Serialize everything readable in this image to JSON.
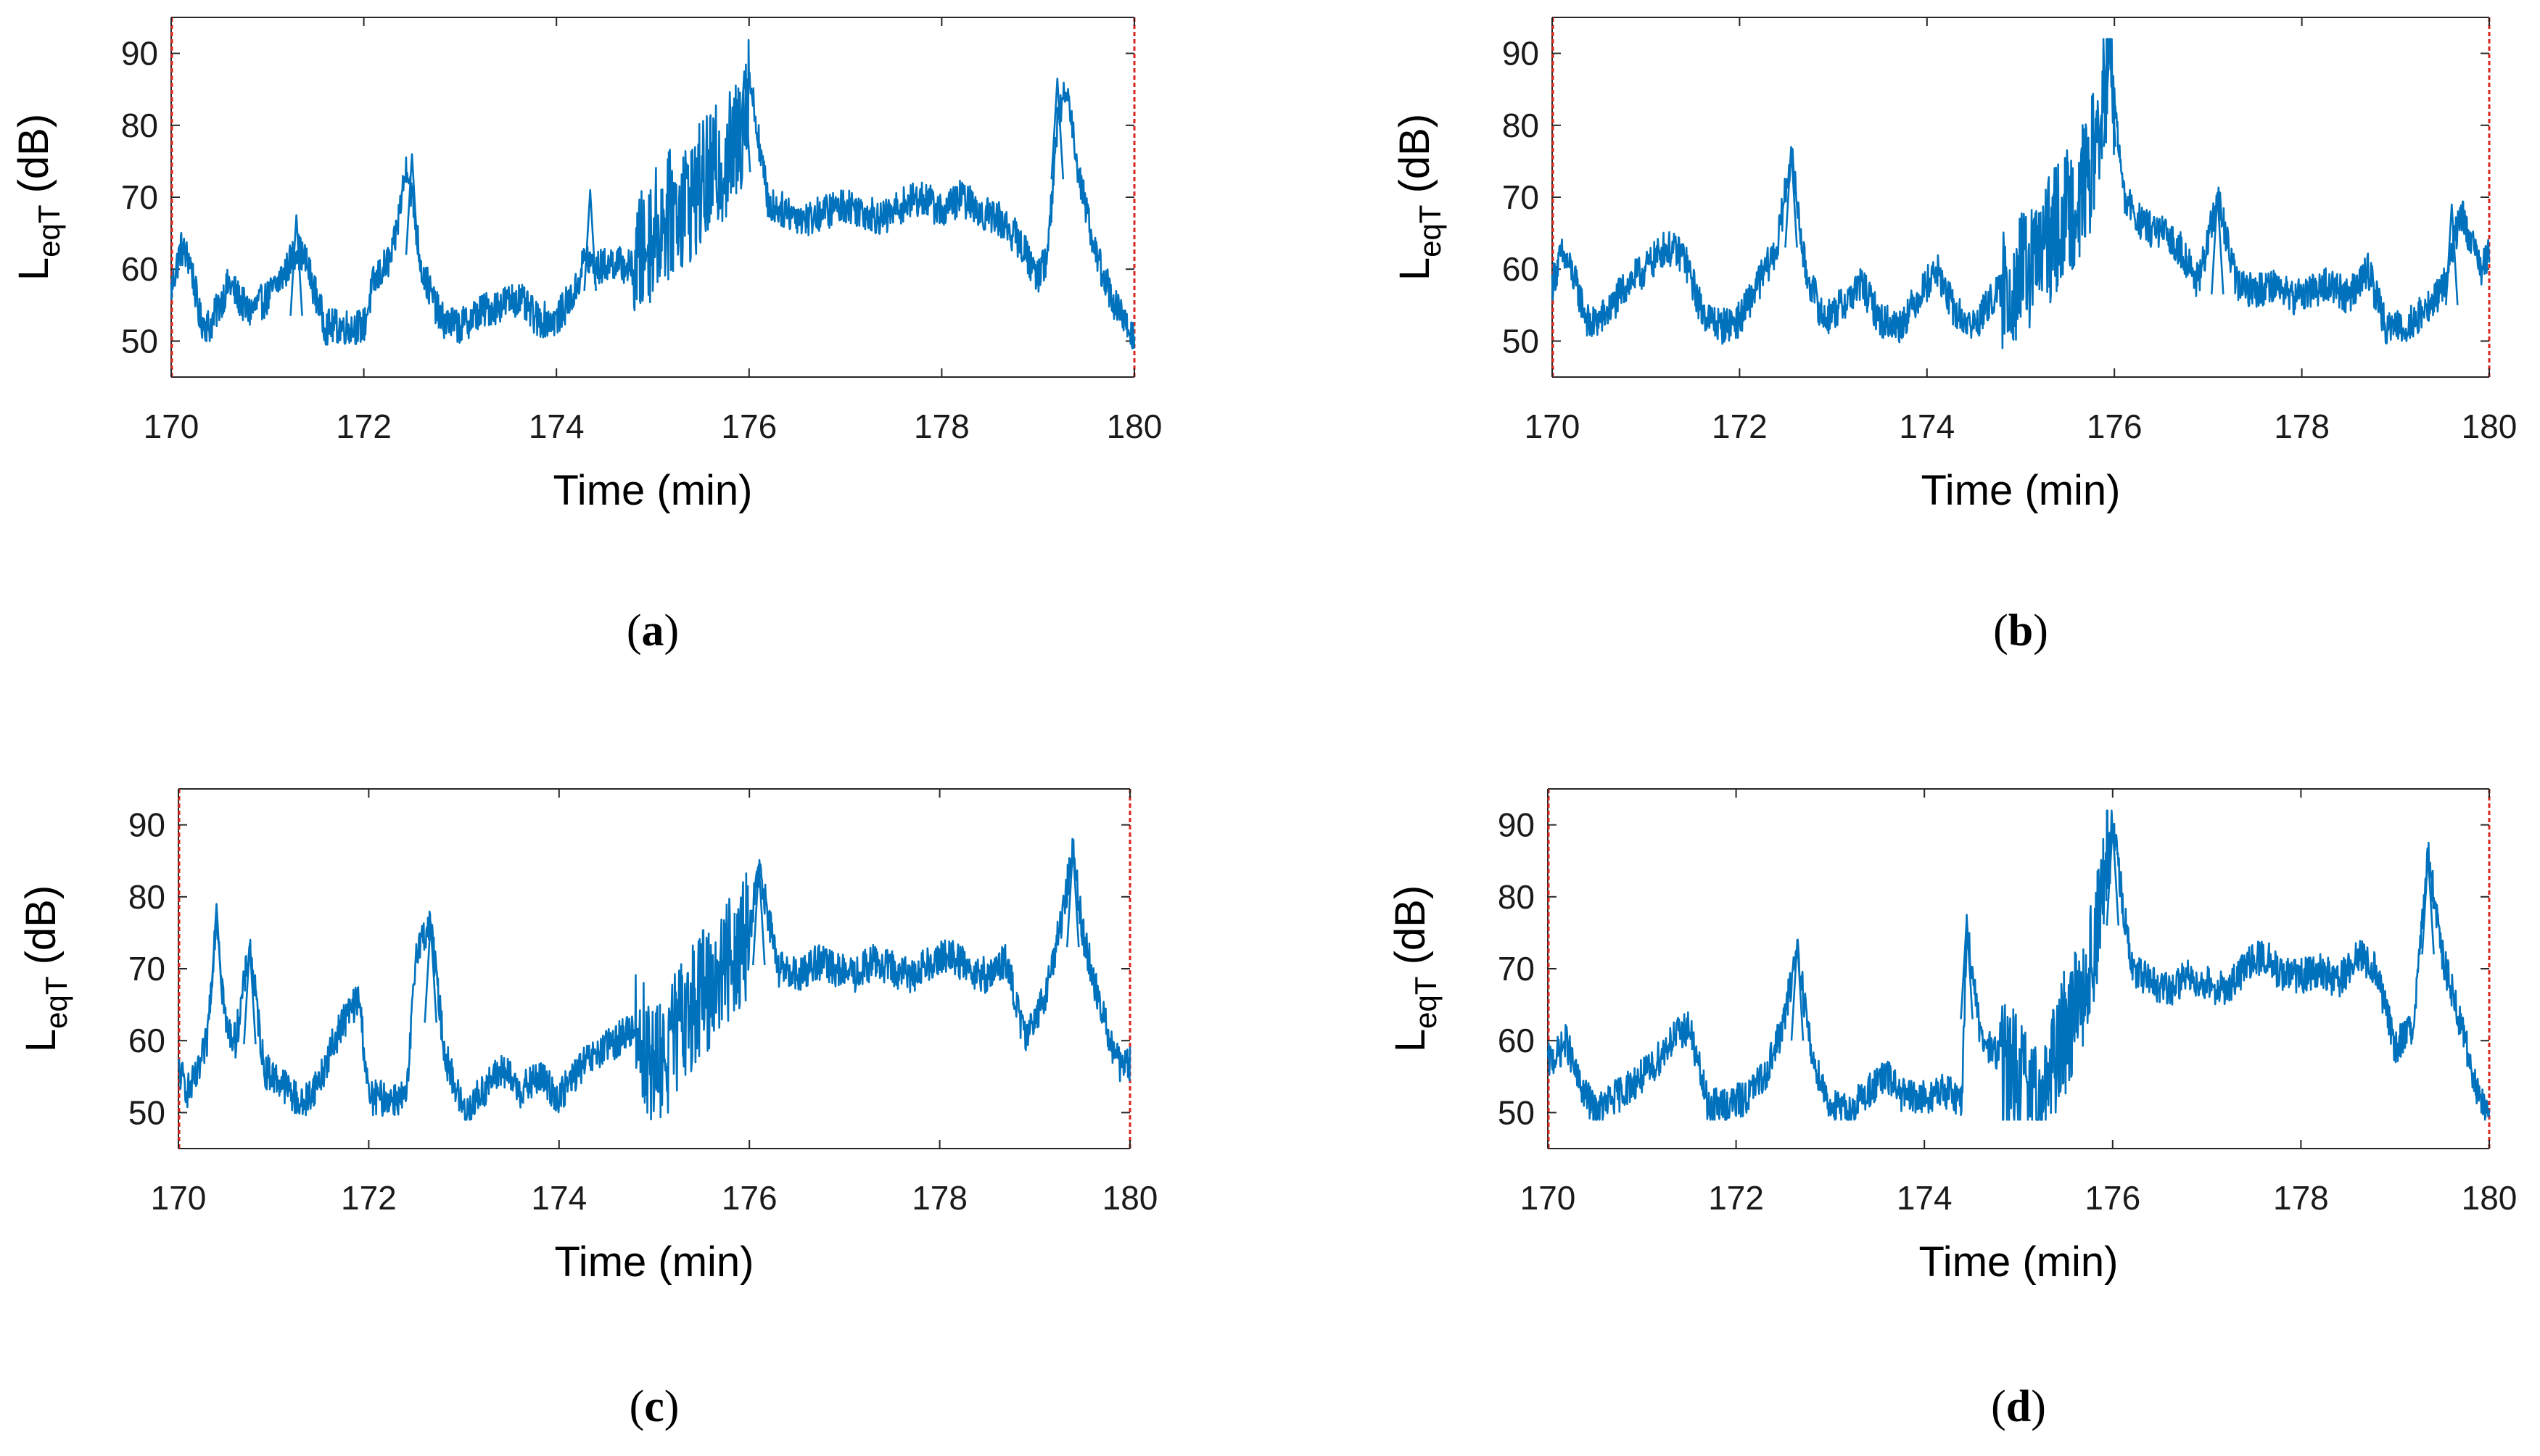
{
  "figure": {
    "caption_open": "(",
    "caption_close": ")"
  },
  "chart_data": [
    {
      "panel": "a",
      "type": "line",
      "xlabel": "Time (min)",
      "ylabel_main": "L",
      "ylabel_sub": "eqT",
      "ylabel_unit": " (dB)",
      "xlim": [
        170,
        180
      ],
      "ylim": [
        45,
        95
      ],
      "xticks": [
        170,
        172,
        174,
        176,
        178,
        180
      ],
      "yticks": [
        50,
        60,
        70,
        80,
        90
      ],
      "color": "#0072BD",
      "x": [
        170.0,
        170.1,
        170.2,
        170.3,
        170.4,
        170.5,
        170.6,
        170.8,
        171.0,
        171.2,
        171.3,
        171.4,
        171.6,
        171.8,
        172.0,
        172.1,
        172.3,
        172.45,
        172.6,
        172.8,
        173.0,
        173.2,
        173.4,
        173.6,
        173.8,
        174.0,
        174.2,
        174.3,
        174.4,
        174.6,
        174.8,
        175.0,
        175.2,
        175.4,
        175.6,
        175.8,
        175.9,
        176.0,
        176.2,
        176.4,
        176.6,
        176.8,
        177.0,
        177.2,
        177.4,
        177.6,
        177.8,
        178.0,
        178.2,
        178.4,
        178.6,
        178.8,
        179.0,
        179.1,
        179.2,
        179.3,
        179.4,
        179.6,
        179.8,
        180.0
      ],
      "y": [
        57,
        63,
        61,
        53,
        52,
        55,
        58,
        54,
        56,
        60,
        63,
        61,
        52,
        52,
        52,
        58,
        62,
        75,
        60,
        53,
        52,
        54,
        55,
        56,
        53,
        53,
        57,
        62,
        60,
        61,
        60,
        65,
        68,
        70,
        73,
        76,
        78,
        87,
        69,
        68,
        67,
        68,
        69,
        68,
        67,
        69,
        70,
        68,
        70,
        68,
        67,
        64,
        59,
        62,
        80,
        86,
        75,
        62,
        55,
        50
      ],
      "peaks": [
        {
          "x": 171.3,
          "y": 67.5
        },
        {
          "x": 172.5,
          "y": 76
        },
        {
          "x": 174.35,
          "y": 71
        },
        {
          "x": 175.95,
          "y": 87.5
        },
        {
          "x": 179.2,
          "y": 86.5
        }
      ],
      "caption_letter": "a"
    },
    {
      "panel": "b",
      "type": "line",
      "xlabel": "Time (min)",
      "ylabel_main": "L",
      "ylabel_sub": "eqT",
      "ylabel_unit": " (dB)",
      "xlim": [
        170,
        180
      ],
      "ylim": [
        45,
        95
      ],
      "xticks": [
        170,
        172,
        174,
        176,
        178,
        180
      ],
      "yticks": [
        50,
        60,
        70,
        80,
        90
      ],
      "color": "#0072BD",
      "x": [
        170.0,
        170.1,
        170.2,
        170.4,
        170.6,
        170.8,
        171.0,
        171.2,
        171.4,
        171.6,
        171.8,
        172.0,
        172.2,
        172.4,
        172.55,
        172.7,
        172.9,
        173.1,
        173.3,
        173.5,
        173.7,
        173.9,
        174.1,
        174.3,
        174.5,
        174.7,
        174.9,
        175.1,
        175.3,
        175.5,
        175.7,
        175.85,
        175.95,
        176.1,
        176.3,
        176.5,
        176.7,
        176.9,
        177.1,
        177.3,
        177.5,
        177.7,
        177.9,
        178.1,
        178.3,
        178.5,
        178.7,
        178.9,
        179.1,
        179.3,
        179.5,
        179.7,
        179.9,
        180.0
      ],
      "y": [
        58,
        62,
        60,
        52,
        54,
        58,
        60,
        63,
        62,
        54,
        52,
        53,
        58,
        63,
        76,
        60,
        53,
        55,
        58,
        53,
        52,
        56,
        60,
        54,
        52,
        56,
        58,
        60,
        64,
        68,
        72,
        80,
        90,
        70,
        66,
        65,
        63,
        58,
        70,
        58,
        57,
        58,
        56,
        57,
        58,
        56,
        60,
        52,
        52,
        54,
        57,
        68,
        60,
        62
      ],
      "peaks": [
        {
          "x": 172.55,
          "y": 77
        },
        {
          "x": 175.95,
          "y": 91
        },
        {
          "x": 177.1,
          "y": 70.5
        },
        {
          "x": 179.6,
          "y": 69
        }
      ],
      "caption_letter": "b"
    },
    {
      "panel": "c",
      "type": "line",
      "xlabel": "Time (min)",
      "ylabel_main": "L",
      "ylabel_sub": "eqT",
      "ylabel_unit": " (dB)",
      "xlim": [
        170,
        180
      ],
      "ylim": [
        45,
        95
      ],
      "xticks": [
        170,
        172,
        174,
        176,
        178,
        180
      ],
      "yticks": [
        50,
        60,
        70,
        80,
        90
      ],
      "color": "#0072BD",
      "x": [
        170.0,
        170.1,
        170.2,
        170.3,
        170.4,
        170.5,
        170.6,
        170.75,
        170.9,
        171.1,
        171.3,
        171.5,
        171.7,
        171.9,
        172.0,
        172.2,
        172.4,
        172.5,
        172.65,
        172.8,
        173.0,
        173.2,
        173.4,
        173.6,
        173.8,
        174.0,
        174.2,
        174.4,
        174.6,
        174.8,
        175.0,
        175.2,
        175.4,
        175.6,
        175.8,
        176.0,
        176.1,
        176.3,
        176.5,
        176.7,
        176.9,
        177.1,
        177.3,
        177.5,
        177.7,
        177.9,
        178.1,
        178.3,
        178.5,
        178.7,
        178.9,
        179.1,
        179.3,
        179.4,
        179.5,
        179.7,
        179.9,
        180.0
      ],
      "y": [
        56,
        53,
        55,
        60,
        78,
        62,
        60,
        73,
        56,
        54,
        51,
        55,
        62,
        66,
        52,
        52,
        52,
        73,
        76,
        58,
        50,
        53,
        56,
        53,
        55,
        52,
        56,
        58,
        60,
        62,
        56,
        60,
        65,
        68,
        72,
        75,
        84,
        70,
        69,
        71,
        70,
        69,
        71,
        70,
        69,
        71,
        72,
        70,
        69,
        71,
        60,
        66,
        78,
        87,
        75,
        64,
        56,
        57
      ],
      "peaks": [
        {
          "x": 170.4,
          "y": 79
        },
        {
          "x": 170.75,
          "y": 73.5
        },
        {
          "x": 172.65,
          "y": 76.5
        },
        {
          "x": 176.1,
          "y": 84.5
        },
        {
          "x": 179.4,
          "y": 87
        }
      ],
      "caption_letter": "c"
    },
    {
      "panel": "d",
      "type": "line",
      "xlabel": "Time (min)",
      "ylabel_main": "L",
      "ylabel_sub": "eqT",
      "ylabel_unit": " (dB)",
      "xlim": [
        170,
        180
      ],
      "ylim": [
        45,
        95
      ],
      "xticks": [
        170,
        172,
        174,
        176,
        178,
        180
      ],
      "yticks": [
        50,
        60,
        70,
        80,
        90
      ],
      "color": "#0072BD",
      "x": [
        170.0,
        170.1,
        170.2,
        170.3,
        170.5,
        170.7,
        170.9,
        171.1,
        171.3,
        171.5,
        171.7,
        171.9,
        172.1,
        172.3,
        172.5,
        172.65,
        172.8,
        173.0,
        173.2,
        173.4,
        173.6,
        173.8,
        174.0,
        174.2,
        174.4,
        174.45,
        174.6,
        174.8,
        175.0,
        175.2,
        175.4,
        175.6,
        175.8,
        176.0,
        176.2,
        176.4,
        176.6,
        176.8,
        177.0,
        177.2,
        177.4,
        177.6,
        177.8,
        178.0,
        178.2,
        178.4,
        178.6,
        178.8,
        179.0,
        179.2,
        179.35,
        179.5,
        179.7,
        179.9,
        180.0
      ],
      "y": [
        57,
        58,
        60,
        55,
        50,
        52,
        54,
        56,
        60,
        62,
        51,
        51,
        52,
        55,
        62,
        73,
        58,
        51,
        50,
        53,
        55,
        52,
        52,
        53,
        52,
        76,
        60,
        58,
        55,
        50,
        58,
        65,
        72,
        90,
        70,
        68,
        67,
        69,
        68,
        67,
        70,
        72,
        69,
        69,
        70,
        68,
        72,
        70,
        59,
        62,
        86,
        72,
        62,
        52,
        50
      ],
      "peaks": [
        {
          "x": 172.65,
          "y": 74
        },
        {
          "x": 174.45,
          "y": 77
        },
        {
          "x": 176.0,
          "y": 90
        },
        {
          "x": 179.35,
          "y": 86
        }
      ],
      "caption_letter": "d"
    }
  ]
}
